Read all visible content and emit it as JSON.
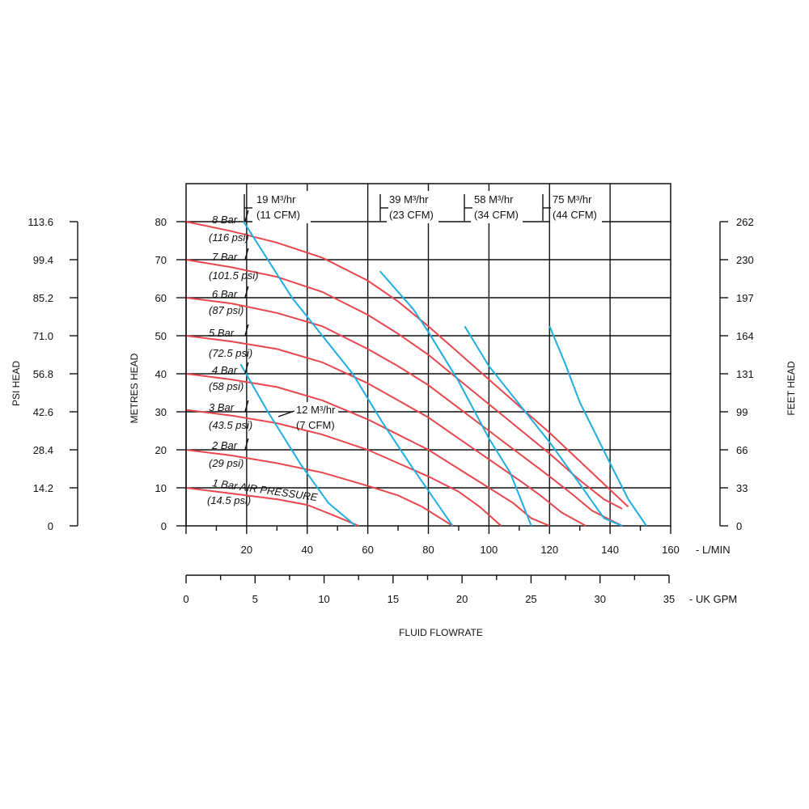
{
  "chart_data": {
    "type": "line",
    "x_label": "FLUID FLOWRATE",
    "y_label_left": "METRES HEAD",
    "y_label_psi": "PSI HEAD",
    "y_label_right": "FEET HEAD",
    "x_unit_primary": "- L/MIN",
    "x_unit_secondary": "- UK GPM",
    "x_range_lpm": [
      0,
      160
    ],
    "y_range_m": [
      0,
      90
    ],
    "x_ticks_lpm": [
      "20",
      "40",
      "60",
      "80",
      "100",
      "120",
      "140",
      "160"
    ],
    "x_ticks_gpm": [
      "0",
      "5",
      "10",
      "15",
      "20",
      "25",
      "30",
      "35"
    ],
    "y_ticks_m": [
      "0",
      "10",
      "20",
      "30",
      "40",
      "50",
      "60",
      "70",
      "80"
    ],
    "y_ticks_psi": [
      "0",
      "14.2",
      "28.4",
      "42.6",
      "56.8",
      "71.0",
      "85.2",
      "99.4",
      "113.6"
    ],
    "y_ticks_ft": [
      "0",
      "33",
      "66",
      "99",
      "131",
      "164",
      "197",
      "230",
      "262"
    ],
    "pressure_curves": [
      {
        "label": "8 Bar",
        "sub": "(116 psi)",
        "color": "#e8474d",
        "points": [
          [
            0,
            80
          ],
          [
            15,
            77.5
          ],
          [
            30,
            74.5
          ],
          [
            45,
            70.5
          ],
          [
            60,
            64.5
          ],
          [
            70,
            59
          ],
          [
            80,
            52.5
          ],
          [
            90,
            45.5
          ],
          [
            100,
            38.5
          ],
          [
            110,
            31.5
          ],
          [
            120,
            24.5
          ],
          [
            130,
            17
          ],
          [
            140,
            9.5
          ],
          [
            146,
            5
          ]
        ]
      },
      {
        "label": "7 Bar",
        "sub": "(101.5 psi)",
        "color": "#e8474d",
        "points": [
          [
            0,
            70
          ],
          [
            15,
            68
          ],
          [
            30,
            65.5
          ],
          [
            45,
            61.5
          ],
          [
            60,
            55.5
          ],
          [
            70,
            50.5
          ],
          [
            80,
            45
          ],
          [
            90,
            38.5
          ],
          [
            100,
            32
          ],
          [
            110,
            25.5
          ],
          [
            120,
            19
          ],
          [
            130,
            12
          ],
          [
            138,
            7
          ],
          [
            144,
            4.5
          ]
        ]
      },
      {
        "label": "6 Bar",
        "sub": "(87 psi)",
        "color": "#e8474d",
        "points": [
          [
            0,
            60
          ],
          [
            15,
            58.5
          ],
          [
            30,
            56
          ],
          [
            45,
            52.5
          ],
          [
            60,
            46.5
          ],
          [
            70,
            42
          ],
          [
            80,
            37
          ],
          [
            90,
            31
          ],
          [
            100,
            25
          ],
          [
            110,
            19
          ],
          [
            120,
            13
          ],
          [
            128,
            8
          ],
          [
            134,
            4
          ],
          [
            144,
            0
          ]
        ]
      },
      {
        "label": "5 Bar",
        "sub": "(72.5 psi)",
        "color": "#e8474d",
        "points": [
          [
            0,
            50
          ],
          [
            15,
            48.5
          ],
          [
            30,
            46.5
          ],
          [
            45,
            43
          ],
          [
            60,
            37.5
          ],
          [
            70,
            33
          ],
          [
            80,
            28.5
          ],
          [
            90,
            23
          ],
          [
            100,
            17.5
          ],
          [
            110,
            12
          ],
          [
            117,
            8
          ],
          [
            124,
            3.5
          ],
          [
            132,
            0
          ]
        ]
      },
      {
        "label": "4 Bar",
        "sub": "(58 psi)",
        "color": "#e8474d",
        "points": [
          [
            0,
            40
          ],
          [
            15,
            38.5
          ],
          [
            30,
            36.5
          ],
          [
            45,
            33
          ],
          [
            60,
            28
          ],
          [
            70,
            24
          ],
          [
            80,
            20
          ],
          [
            90,
            15
          ],
          [
            100,
            10
          ],
          [
            108,
            6
          ],
          [
            114,
            2
          ],
          [
            120,
            0
          ]
        ]
      },
      {
        "label": "3 Bar",
        "sub": "(43.5 psi)",
        "color": "#e8474d",
        "points": [
          [
            0,
            30.5
          ],
          [
            15,
            29
          ],
          [
            30,
            27
          ],
          [
            45,
            24
          ],
          [
            60,
            20
          ],
          [
            70,
            16.5
          ],
          [
            80,
            13
          ],
          [
            90,
            9
          ],
          [
            97,
            5
          ],
          [
            104,
            0
          ]
        ]
      },
      {
        "label": "2 Bar",
        "sub": "(29 psi)",
        "color": "#e8474d",
        "points": [
          [
            0,
            20
          ],
          [
            15,
            18.5
          ],
          [
            30,
            16.5
          ],
          [
            45,
            14
          ],
          [
            60,
            10.5
          ],
          [
            70,
            8
          ],
          [
            78,
            5
          ],
          [
            84,
            2
          ],
          [
            88,
            0
          ]
        ]
      },
      {
        "label": "1 Bar AIR PRESSURE",
        "sub": "(14.5 psi)",
        "color": "#e8474d",
        "points": [
          [
            0,
            10
          ],
          [
            15,
            8.5
          ],
          [
            30,
            7
          ],
          [
            40,
            5.5
          ],
          [
            48,
            3
          ],
          [
            54,
            1
          ],
          [
            57,
            0
          ]
        ]
      }
    ],
    "air_curves": [
      {
        "label": "12 M³/hr",
        "sub": "(7 CFM)",
        "color": "#1eaee2",
        "points": [
          [
            18,
            42.5
          ],
          [
            27,
            30
          ],
          [
            38,
            16
          ],
          [
            47,
            6
          ],
          [
            56,
            0
          ]
        ]
      },
      {
        "label": "19 M³/hr",
        "sub": "(11 CFM)",
        "color": "#1eaee2",
        "points": [
          [
            19,
            80
          ],
          [
            35,
            60
          ],
          [
            45,
            50
          ],
          [
            55,
            40
          ],
          [
            65,
            27
          ],
          [
            75,
            15
          ],
          [
            88,
            0
          ]
        ]
      },
      {
        "label": "39 M³/hr",
        "sub": "(23 CFM)",
        "color": "#1eaee2",
        "points": [
          [
            64,
            67
          ],
          [
            75,
            57
          ],
          [
            80,
            51
          ],
          [
            90,
            38
          ],
          [
            100,
            23
          ],
          [
            107,
            14
          ],
          [
            114,
            0
          ]
        ]
      },
      {
        "label": "58 M³/hr",
        "sub": "(34 CFM)",
        "color": "#1eaee2",
        "points": [
          [
            92,
            52.5
          ],
          [
            100,
            42
          ],
          [
            110,
            32
          ],
          [
            120,
            22
          ],
          [
            130,
            11
          ],
          [
            138,
            2
          ],
          [
            144,
            0
          ]
        ]
      },
      {
        "label": "75 M³/hr",
        "sub": "(44 CFM)",
        "color": "#1eaee2",
        "points": [
          [
            120,
            52.5
          ],
          [
            125,
            43
          ],
          [
            130,
            32.5
          ],
          [
            140,
            16.5
          ],
          [
            146,
            7
          ],
          [
            152,
            0
          ]
        ]
      }
    ]
  }
}
